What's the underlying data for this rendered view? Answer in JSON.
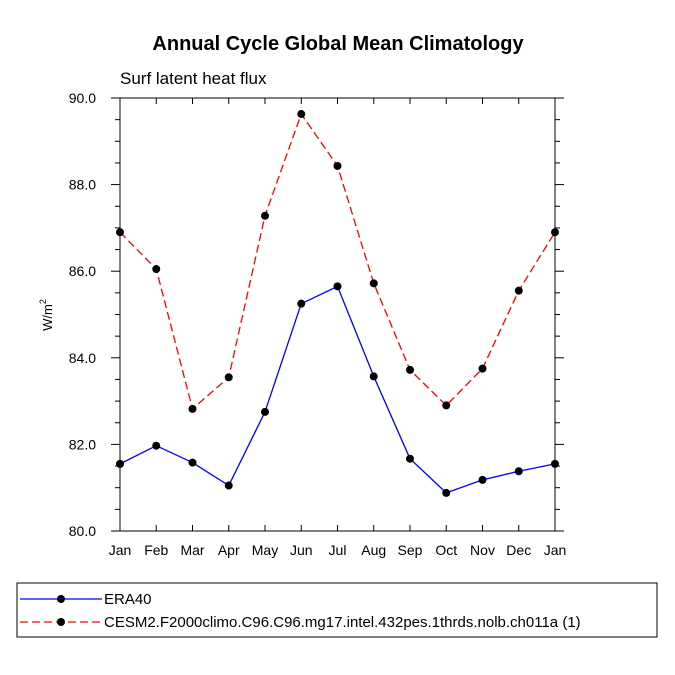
{
  "chart_data": {
    "type": "line",
    "title": "Annual Cycle Global Mean Climatology",
    "subtitle": "Surf latent heat flux",
    "ylabel": "W/m",
    "ylabel_sup": "2",
    "xlabel": "",
    "categories": [
      "Jan",
      "Feb",
      "Mar",
      "Apr",
      "May",
      "Jun",
      "Jul",
      "Aug",
      "Sep",
      "Oct",
      "Nov",
      "Dec",
      "Jan"
    ],
    "ylim": [
      80.0,
      90.0
    ],
    "yticks": [
      "80.0",
      "82.0",
      "84.0",
      "86.0",
      "88.0",
      "90.0"
    ],
    "grid": false,
    "legend_position": "bottom",
    "series": [
      {
        "name": "ERA40",
        "color": "#0000ff",
        "style": "solid",
        "marker": "dot",
        "values": [
          81.55,
          81.97,
          81.58,
          81.05,
          82.75,
          85.25,
          85.65,
          83.57,
          81.67,
          80.88,
          81.18,
          81.38,
          81.55
        ]
      },
      {
        "name": "CESM2.F2000climo.C96.C96.mg17.intel.432pes.1thrds.nolb.ch011a (1)",
        "color": "#ff0000",
        "style": "dashed",
        "marker": "dot",
        "values": [
          86.9,
          86.05,
          82.82,
          83.55,
          87.28,
          89.63,
          88.43,
          85.72,
          83.72,
          82.9,
          83.75,
          85.55,
          86.9
        ]
      }
    ]
  }
}
